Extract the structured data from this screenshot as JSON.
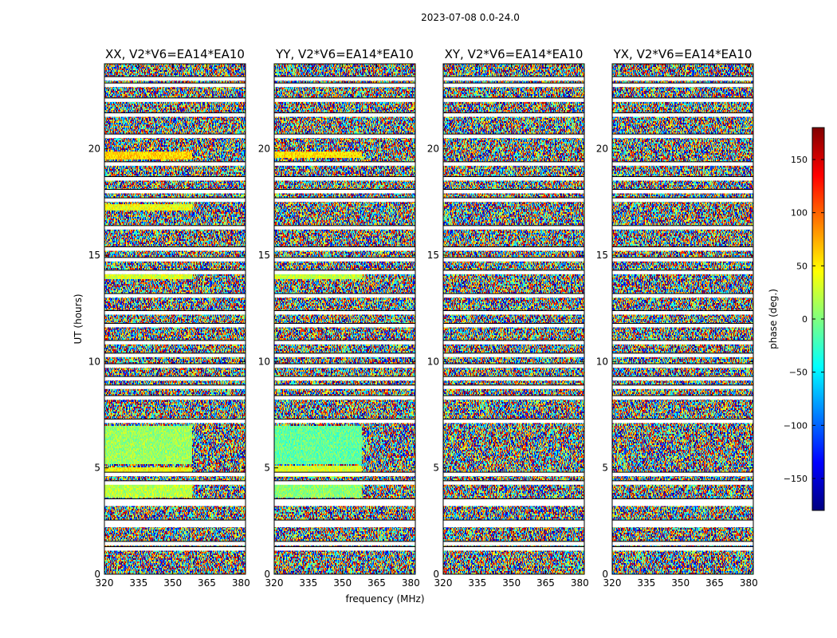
{
  "chart_data": {
    "type": "heatmap",
    "suptitle": "2023-07-08 0.0-24.0",
    "xlabel": "frequency (MHz)",
    "ylabel": "UT (hours)",
    "xlim": [
      320,
      382
    ],
    "ylim": [
      0,
      24
    ],
    "xticks": [
      "320",
      "335",
      "350",
      "365",
      "380"
    ],
    "yticks": [
      "0",
      "5",
      "10",
      "15",
      "20"
    ],
    "panels": [
      {
        "title": "XX, V2*V6=EA14*EA10",
        "polarization": "XX"
      },
      {
        "title": "YY, V2*V6=EA14*EA10",
        "polarization": "YY"
      },
      {
        "title": "XY, V2*V6=EA14*EA10",
        "polarization": "XY"
      },
      {
        "title": "YX, V2*V6=EA14*EA10",
        "polarization": "YX"
      }
    ],
    "colorbar": {
      "label": "phase (deg.)",
      "range": [
        -180,
        180
      ],
      "ticks": [
        "150",
        "100",
        "50",
        "0",
        "−50",
        "−100",
        "−150"
      ],
      "colormap": "jet"
    },
    "flagged_ut_hours": [
      1.2,
      1.45,
      2.3,
      2.45,
      3.3,
      3.45,
      4.3,
      4.7,
      7.2,
      8.3,
      8.8,
      9.2,
      9.8,
      10.3,
      10.9,
      11.7,
      12.3,
      13.1,
      14.2,
      14.8,
      15.3,
      16.3,
      17.6,
      18.0,
      18.6,
      19.3,
      20.6,
      21.6,
      22.3,
      23.0,
      23.3
    ],
    "coherent_bands": {
      "XX": [
        [
          17.1,
          17.4,
          40
        ],
        [
          19.5,
          19.9,
          60
        ],
        [
          13.9,
          14.1,
          30
        ],
        [
          3.6,
          4.3,
          20
        ],
        [
          4.8,
          5.0,
          45
        ],
        [
          5.2,
          7.0,
          10
        ]
      ],
      "YY": [
        [
          19.6,
          19.9,
          55
        ],
        [
          13.9,
          14.2,
          25
        ],
        [
          3.6,
          4.3,
          5
        ],
        [
          4.6,
          5.1,
          30
        ],
        [
          5.2,
          7.0,
          -10
        ]
      ],
      "XY": [],
      "YX": []
    }
  }
}
